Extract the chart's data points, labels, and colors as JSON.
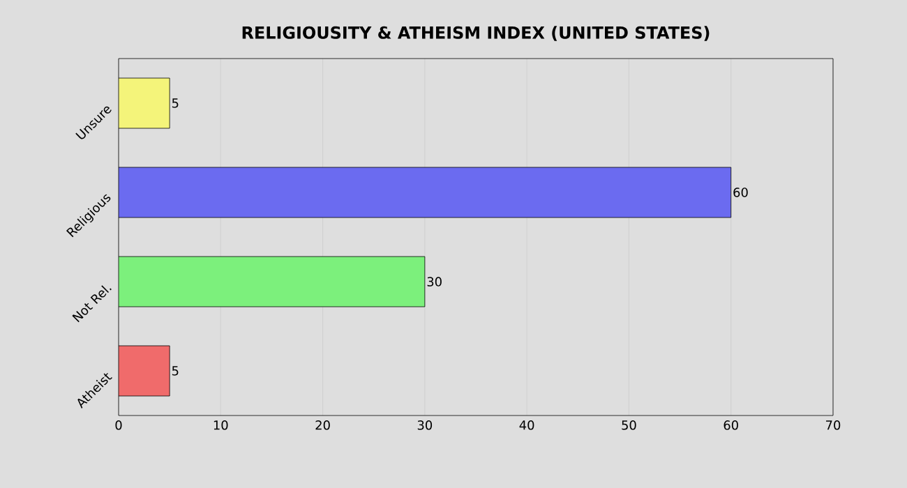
{
  "chart_data": {
    "type": "bar",
    "orientation": "horizontal",
    "title": "RELIGIOUSITY & ATHEISM INDEX (UNITED STATES)",
    "categories": [
      "Unsure",
      "Religious",
      "Not Rel.",
      "Atheist"
    ],
    "values": [
      5,
      60,
      30,
      5
    ],
    "colors": [
      "#f4f47a",
      "#6b6bf0",
      "#7cf07c",
      "#f06b6b"
    ],
    "xlim": [
      0,
      70
    ],
    "xticks": [
      0,
      10,
      20,
      30,
      40,
      50,
      60,
      70
    ],
    "grid": "x",
    "data_labels": true
  }
}
